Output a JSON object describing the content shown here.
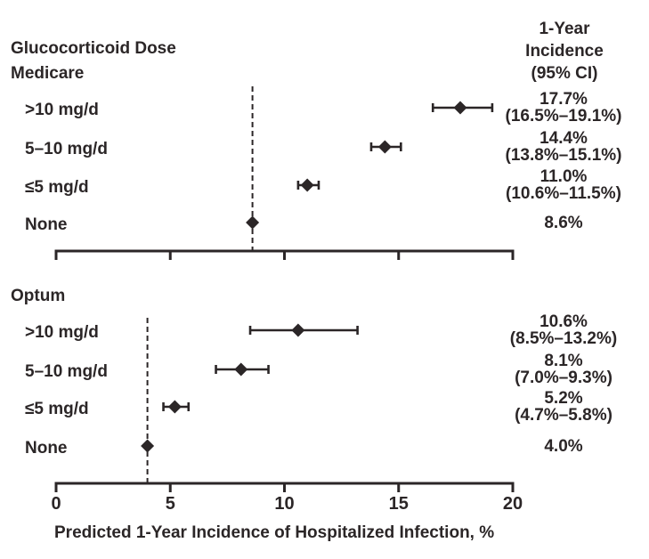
{
  "header": {
    "left_title": "Glucocorticoid Dose",
    "right_title_lines": [
      "1-Year",
      "Incidence",
      "(95% CI)"
    ]
  },
  "colors": {
    "ink": "#2b2627"
  },
  "chart_data": {
    "type": "scatter",
    "subtype": "forest-plot",
    "title": "",
    "xlabel": "Predicted 1-Year Incidence of Hospitalized Infection, %",
    "ylabel": "",
    "xlim": [
      0,
      20
    ],
    "x_ticks": [
      0,
      5,
      10,
      15,
      20
    ],
    "x_tick_labels": [
      "0",
      "5",
      "10",
      "15",
      "20"
    ],
    "grid": false,
    "legend": "none",
    "panels": [
      {
        "name": "Medicare",
        "reference_line_x": 8.6,
        "rows": [
          {
            "label": ">10 mg/d",
            "value": 17.7,
            "ci_low": 16.5,
            "ci_high": 19.1,
            "value_text": "17.7%",
            "ci_text": "(16.5%–19.1%)"
          },
          {
            "label": "5–10 mg/d",
            "value": 14.4,
            "ci_low": 13.8,
            "ci_high": 15.1,
            "value_text": "14.4%",
            "ci_text": "(13.8%–15.1%)"
          },
          {
            "label": "≤5 mg/d",
            "value": 11.0,
            "ci_low": 10.6,
            "ci_high": 11.5,
            "value_text": "11.0%",
            "ci_text": "(10.6%–11.5%)"
          },
          {
            "label": "None",
            "value": 8.6,
            "ci_low": null,
            "ci_high": null,
            "value_text": "8.6%",
            "ci_text": ""
          }
        ]
      },
      {
        "name": "Optum",
        "reference_line_x": 4.0,
        "rows": [
          {
            "label": ">10 mg/d",
            "value": 10.6,
            "ci_low": 8.5,
            "ci_high": 13.2,
            "value_text": "10.6%",
            "ci_text": "(8.5%–13.2%)"
          },
          {
            "label": "5–10 mg/d",
            "value": 8.1,
            "ci_low": 7.0,
            "ci_high": 9.3,
            "value_text": "8.1%",
            "ci_text": "(7.0%–9.3%)"
          },
          {
            "label": "≤5 mg/d",
            "value": 5.2,
            "ci_low": 4.7,
            "ci_high": 5.8,
            "value_text": "5.2%",
            "ci_text": "(4.7%–5.8%)"
          },
          {
            "label": "None",
            "value": 4.0,
            "ci_low": null,
            "ci_high": null,
            "value_text": "4.0%",
            "ci_text": ""
          }
        ]
      }
    ]
  }
}
